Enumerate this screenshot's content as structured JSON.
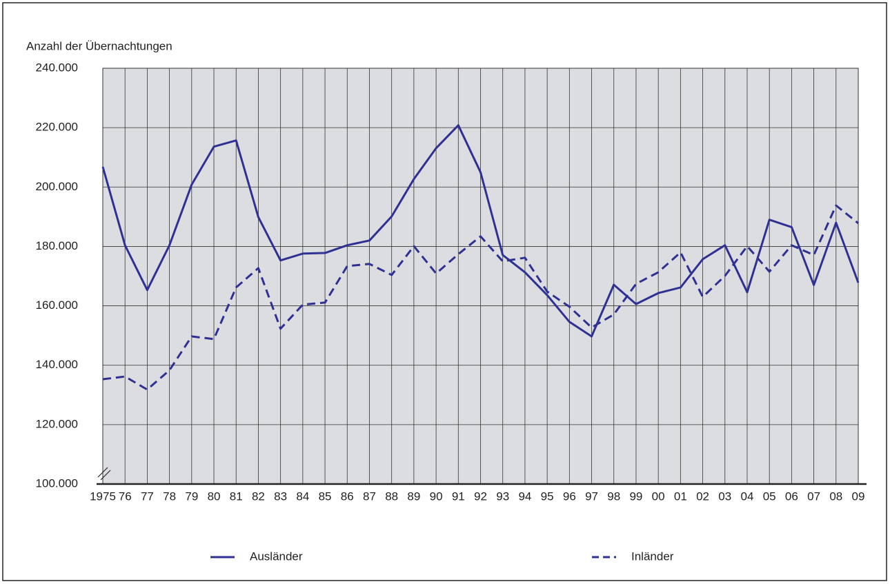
{
  "chart_data": {
    "type": "line",
    "y_label": "Anzahl der Übernachtungen",
    "categories": [
      "1975",
      "76",
      "77",
      "78",
      "79",
      "80",
      "81",
      "82",
      "83",
      "84",
      "85",
      "86",
      "87",
      "88",
      "89",
      "90",
      "91",
      "92",
      "93",
      "94",
      "95",
      "96",
      "97",
      "98",
      "99",
      "00",
      "01",
      "02",
      "03",
      "04",
      "05",
      "06",
      "07",
      "08",
      "09"
    ],
    "series": [
      {
        "name": "Ausländer",
        "color": "#2e3192",
        "dash": false,
        "values": [
          206800,
          180400,
          165300,
          180400,
          200800,
          213600,
          215700,
          189900,
          175300,
          177600,
          177800,
          180400,
          182000,
          190100,
          202700,
          213100,
          220800,
          205000,
          177100,
          171300,
          163600,
          154600,
          149700,
          167100,
          160600,
          164300,
          166200,
          175700,
          180400,
          164600,
          189000,
          186500,
          167000,
          188000,
          167800
        ]
      },
      {
        "name": "Inländer",
        "color": "#2e3192",
        "dash": true,
        "values": [
          135300,
          136200,
          131800,
          138300,
          149700,
          148800,
          166200,
          172700,
          152300,
          160400,
          161100,
          173400,
          174100,
          170400,
          180100,
          170900,
          177400,
          183400,
          175000,
          176200,
          164800,
          159700,
          152700,
          157100,
          167400,
          171300,
          178000,
          163000,
          170100,
          180100,
          171500,
          180400,
          177100,
          193800,
          187800
        ]
      }
    ],
    "ylim": [
      100000,
      240000
    ],
    "yticks": [
      {
        "value": 100000,
        "label": "100.000"
      },
      {
        "value": 120000,
        "label": "120.000"
      },
      {
        "value": 140000,
        "label": "140.000"
      },
      {
        "value": 160000,
        "label": "160.000"
      },
      {
        "value": 180000,
        "label": "180.000"
      },
      {
        "value": 200000,
        "label": "200.000"
      },
      {
        "value": 220000,
        "label": "220.000"
      },
      {
        "value": 240000,
        "label": "240.000"
      }
    ],
    "grid": true
  }
}
